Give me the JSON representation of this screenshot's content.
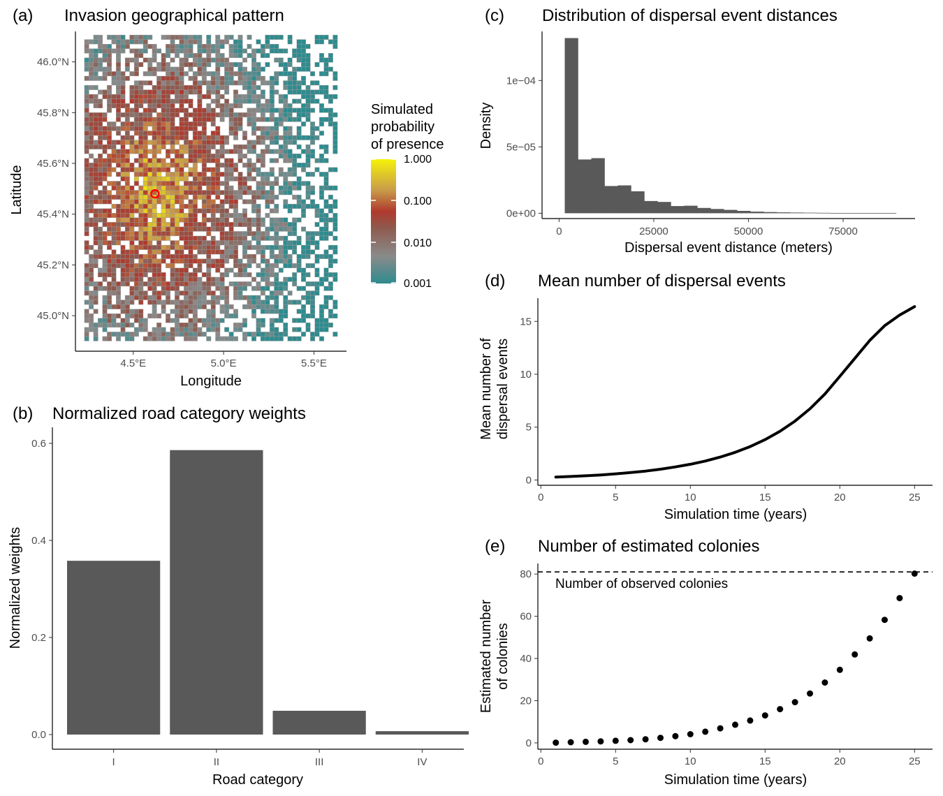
{
  "chart_data": [
    {
      "panel": "(a)",
      "type": "heatmap",
      "title": "Invasion geographical pattern",
      "xlabel": "Longitude",
      "ylabel": "Latitude",
      "xticks": [
        "4.5°E",
        "5.0°E",
        "5.5°E"
      ],
      "yticks": [
        "46.0°N",
        "45.8°N",
        "45.6°N",
        "45.4°N",
        "45.2°N",
        "45.0°N"
      ],
      "xlim": [
        4.18,
        5.68
      ],
      "ylim": [
        44.86,
        46.12
      ],
      "introduction_point": {
        "lon": 4.62,
        "lat": 45.48
      },
      "legend": {
        "title_lines": [
          "Simulated",
          "probability",
          "of presence"
        ],
        "labels": [
          "1.000",
          "0.100",
          "0.010",
          "0.001"
        ],
        "scale": "log",
        "colors": [
          "#2e8b8e",
          "#8a8a8a",
          "#b03a2e",
          "#c89b4a",
          "#f5f20a"
        ]
      }
    },
    {
      "panel": "(b)",
      "type": "bar",
      "title": "Normalized road category weights",
      "xlabel": "Road category",
      "ylabel": "Normalized weights",
      "categories": [
        "I",
        "II",
        "III",
        "IV"
      ],
      "values": [
        0.358,
        0.586,
        0.049,
        0.007
      ],
      "ylim": [
        0,
        0.62
      ],
      "yticks": [
        "0.0",
        "0.2",
        "0.4",
        "0.6"
      ],
      "color": "#595959"
    },
    {
      "panel": "(c)",
      "type": "bar",
      "title": "Distribution of dispersal event distances",
      "xlabel": "Dispersal event distance (meters)",
      "ylabel": "Density",
      "bin_width": 3500,
      "bin_start": 1500,
      "values": [
        0.000132,
        4.05e-05,
        4.15e-05,
        2.05e-05,
        2.1e-05,
        1.65e-05,
        9.2e-06,
        8.5e-06,
        5.4e-06,
        5.7e-06,
        4e-06,
        3.2e-06,
        2.5e-06,
        1.8e-06,
        1.2e-06,
        9e-07,
        7e-07,
        5e-07,
        4e-07,
        3e-07,
        2e-07,
        2e-07,
        1e-07,
        1e-07,
        1e-07
      ],
      "xlim": [
        -4500,
        94000
      ],
      "ylim": [
        -4e-06,
        0.000137
      ],
      "xticks": [
        "0",
        "25000",
        "50000",
        "75000"
      ],
      "yticks": [
        "0e+00",
        "5e−05",
        "1e−04"
      ],
      "color": "#595959"
    },
    {
      "panel": "(d)",
      "type": "line",
      "title": "Mean number of dispersal events",
      "xlabel": "Simulation time (years)",
      "ylabel_lines": [
        "Mean number of",
        "dispersal events"
      ],
      "x": [
        1,
        2,
        3,
        4,
        5,
        6,
        7,
        8,
        9,
        10,
        11,
        12,
        13,
        14,
        15,
        16,
        17,
        18,
        19,
        20,
        21,
        22,
        23,
        24,
        25
      ],
      "y": [
        0.27,
        0.33,
        0.4,
        0.48,
        0.58,
        0.7,
        0.84,
        1.02,
        1.24,
        1.49,
        1.79,
        2.17,
        2.62,
        3.16,
        3.82,
        4.61,
        5.57,
        6.73,
        8.13,
        9.8,
        11.5,
        13.2,
        14.6,
        15.6,
        16.4
      ],
      "xlim": [
        -0.2,
        26.2
      ],
      "ylim": [
        -0.5,
        17.2
      ],
      "xticks": [
        "0",
        "5",
        "10",
        "15",
        "20",
        "25"
      ],
      "yticks": [
        "0",
        "5",
        "10",
        "15"
      ]
    },
    {
      "panel": "(e)",
      "type": "scatter",
      "title": "Number of estimated colonies",
      "xlabel": "Simulation time (years)",
      "ylabel_lines": [
        "Estimated number",
        "of colonies"
      ],
      "x": [
        1,
        2,
        3,
        4,
        5,
        6,
        7,
        8,
        9,
        10,
        11,
        12,
        13,
        14,
        15,
        16,
        17,
        18,
        19,
        20,
        21,
        22,
        23,
        24,
        25
      ],
      "y": [
        0.1,
        0.3,
        0.5,
        0.7,
        1.0,
        1.3,
        1.7,
        2.4,
        3.2,
        4.1,
        5.3,
        6.9,
        8.6,
        10.6,
        13.0,
        16.0,
        19.3,
        23.4,
        28.6,
        34.6,
        41.9,
        49.5,
        58.3,
        68.6,
        80.2
      ],
      "xlim": [
        -0.2,
        26.2
      ],
      "ylim": [
        -3,
        85
      ],
      "xticks": [
        "0",
        "5",
        "10",
        "15",
        "20",
        "25"
      ],
      "yticks": [
        "0",
        "20",
        "40",
        "60",
        "80"
      ],
      "reference_line": {
        "y": 81,
        "label": "Number of observed colonies"
      }
    }
  ]
}
